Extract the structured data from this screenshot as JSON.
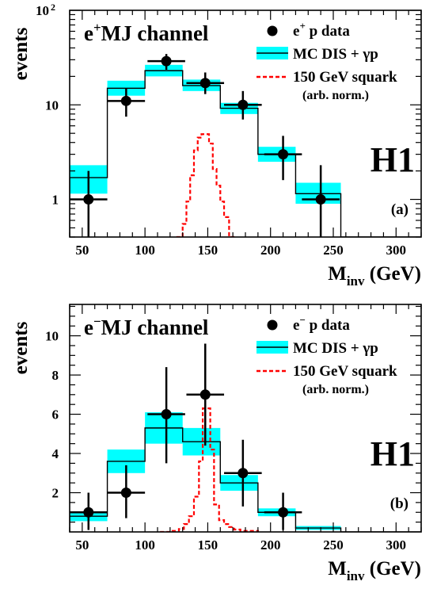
{
  "chart_data": [
    {
      "type": "histogram",
      "panel_label": "(a)",
      "experiment_label": "H1",
      "channel": {
        "lepton": "e",
        "charge": "+",
        "rest": "MJ channel"
      },
      "ylabel": "events",
      "xlabel": {
        "main": "M",
        "sub": "inv",
        "unit": "(GeV)"
      },
      "x_ticks": [
        "50",
        "100",
        "150",
        "200",
        "250",
        "300"
      ],
      "y_ticks": [
        {
          "value": 1,
          "label": "1"
        },
        {
          "value": 10,
          "label": "10"
        },
        {
          "value": 100,
          "base": "10",
          "exp": "2"
        }
      ],
      "xlim": [
        40,
        320
      ],
      "ylim": [
        0.4,
        100
      ],
      "y_scale": "log",
      "legend": {
        "position": "top-right",
        "data": {
          "pre": "e",
          "charge": "+",
          "post": "p data"
        },
        "mc": "MC DIS + γp",
        "signal": "150 GeV squark",
        "signal_note": "(arb. norm.)"
      },
      "bin_edges": [
        40,
        70,
        100,
        130,
        160,
        190,
        220,
        256,
        320
      ],
      "mc_values": [
        1.7,
        15.0,
        23.0,
        16.0,
        9.2,
        3.0,
        1.15,
        0.4
      ],
      "mc_band": [
        [
          1.15,
          2.3
        ],
        [
          12.5,
          18.0
        ],
        [
          20.0,
          26.5
        ],
        [
          14.0,
          18.5
        ],
        [
          8.0,
          10.5
        ],
        [
          2.5,
          3.6
        ],
        [
          0.9,
          1.5
        ],
        [
          0.4,
          0.4
        ]
      ],
      "data_points": [
        {
          "x": 55,
          "y": 1,
          "yerr": [
            0.3,
            2.0
          ],
          "xerr": 15
        },
        {
          "x": 85,
          "y": 11,
          "yerr": [
            7.5,
            15.0
          ],
          "xerr": 15
        },
        {
          "x": 117,
          "y": 29,
          "yerr": [
            23.5,
            34.5
          ],
          "xerr": 15
        },
        {
          "x": 148,
          "y": 17,
          "yerr": [
            13.0,
            22.0
          ],
          "xerr": 15
        },
        {
          "x": 178,
          "y": 10,
          "yerr": [
            7.0,
            14.0
          ],
          "xerr": 15
        },
        {
          "x": 210,
          "y": 3,
          "yerr": [
            1.6,
            4.7
          ],
          "xerr": 15
        },
        {
          "x": 240,
          "y": 1,
          "yerr": [
            0.3,
            2.3
          ],
          "xerr": 15
        }
      ],
      "signal_steps": [
        {
          "x": 125,
          "y": 0.4
        },
        {
          "x": 130,
          "y": 0.55
        },
        {
          "x": 133,
          "y": 0.95
        },
        {
          "x": 136,
          "y": 1.8
        },
        {
          "x": 139,
          "y": 3.3
        },
        {
          "x": 142,
          "y": 4.5
        },
        {
          "x": 145,
          "y": 4.9
        },
        {
          "x": 151,
          "y": 3.9
        },
        {
          "x": 154,
          "y": 2.1
        },
        {
          "x": 157,
          "y": 1.4
        },
        {
          "x": 160,
          "y": 0.95
        },
        {
          "x": 163,
          "y": 0.65
        },
        {
          "x": 167,
          "y": 0.4
        },
        {
          "x": 172,
          "y": 0.4
        }
      ],
      "colors": {
        "band": "#00ffff",
        "signal": "#ff0000",
        "mc_line": "#000000",
        "data": "#000000"
      }
    },
    {
      "type": "histogram",
      "panel_label": "(b)",
      "experiment_label": "H1",
      "channel": {
        "lepton": "e",
        "charge": "−",
        "rest": "MJ channel"
      },
      "ylabel": "events",
      "xlabel": {
        "main": "M",
        "sub": "inv",
        "unit": "(GeV)"
      },
      "x_ticks": [
        "50",
        "100",
        "150",
        "200",
        "250",
        "300"
      ],
      "y_ticks": [
        {
          "value": 2,
          "label": "2"
        },
        {
          "value": 4,
          "label": "4"
        },
        {
          "value": 6,
          "label": "6"
        },
        {
          "value": 8,
          "label": "8"
        },
        {
          "value": 10,
          "label": "10"
        }
      ],
      "xlim": [
        40,
        320
      ],
      "ylim": [
        0,
        11.6
      ],
      "y_scale": "linear",
      "legend": {
        "position": "top-right",
        "data": {
          "pre": "e",
          "charge": "−",
          "post": "p data"
        },
        "mc": "MC DIS + γp",
        "signal": "150 GeV squark",
        "signal_note": "(arb. norm.)"
      },
      "bin_edges": [
        40,
        70,
        100,
        130,
        160,
        190,
        220,
        256,
        320
      ],
      "mc_values": [
        0.8,
        3.6,
        5.3,
        4.6,
        2.5,
        1.0,
        0.2,
        0.0
      ],
      "mc_band": [
        [
          0.55,
          1.05
        ],
        [
          3.0,
          4.2
        ],
        [
          4.5,
          6.1
        ],
        [
          3.9,
          5.3
        ],
        [
          2.1,
          2.9
        ],
        [
          0.8,
          1.2
        ],
        [
          0.1,
          0.3
        ],
        [
          0,
          0
        ]
      ],
      "data_points": [
        {
          "x": 55,
          "y": 1,
          "yerr": [
            0.1,
            2.0
          ],
          "xerr": 15
        },
        {
          "x": 85,
          "y": 2,
          "yerr": [
            0.7,
            3.4
          ],
          "xerr": 15
        },
        {
          "x": 117,
          "y": 6,
          "yerr": [
            3.5,
            8.4
          ],
          "xerr": 15
        },
        {
          "x": 148,
          "y": 7,
          "yerr": [
            4.4,
            9.6
          ],
          "xerr": 15
        },
        {
          "x": 178,
          "y": 3,
          "yerr": [
            1.3,
            4.7
          ],
          "xerr": 15
        },
        {
          "x": 210,
          "y": 1,
          "yerr": [
            0.1,
            2.0
          ],
          "xerr": 15
        }
      ],
      "signal_steps": [
        {
          "x": 112,
          "y": 0
        },
        {
          "x": 120,
          "y": 0.05
        },
        {
          "x": 127,
          "y": 0.15
        },
        {
          "x": 131,
          "y": 0.4
        },
        {
          "x": 135,
          "y": 0.8
        },
        {
          "x": 139,
          "y": 1.8
        },
        {
          "x": 143,
          "y": 3.6
        },
        {
          "x": 146,
          "y": 6.3
        },
        {
          "x": 152,
          "y": 4.2
        },
        {
          "x": 155,
          "y": 1.4
        },
        {
          "x": 159,
          "y": 0.6
        },
        {
          "x": 163,
          "y": 0.4
        },
        {
          "x": 167,
          "y": 0.25
        },
        {
          "x": 171,
          "y": 0.12
        },
        {
          "x": 176,
          "y": 0.05
        },
        {
          "x": 190,
          "y": 0
        }
      ],
      "colors": {
        "band": "#00ffff",
        "signal": "#ff0000",
        "mc_line": "#000000",
        "data": "#000000"
      }
    }
  ]
}
